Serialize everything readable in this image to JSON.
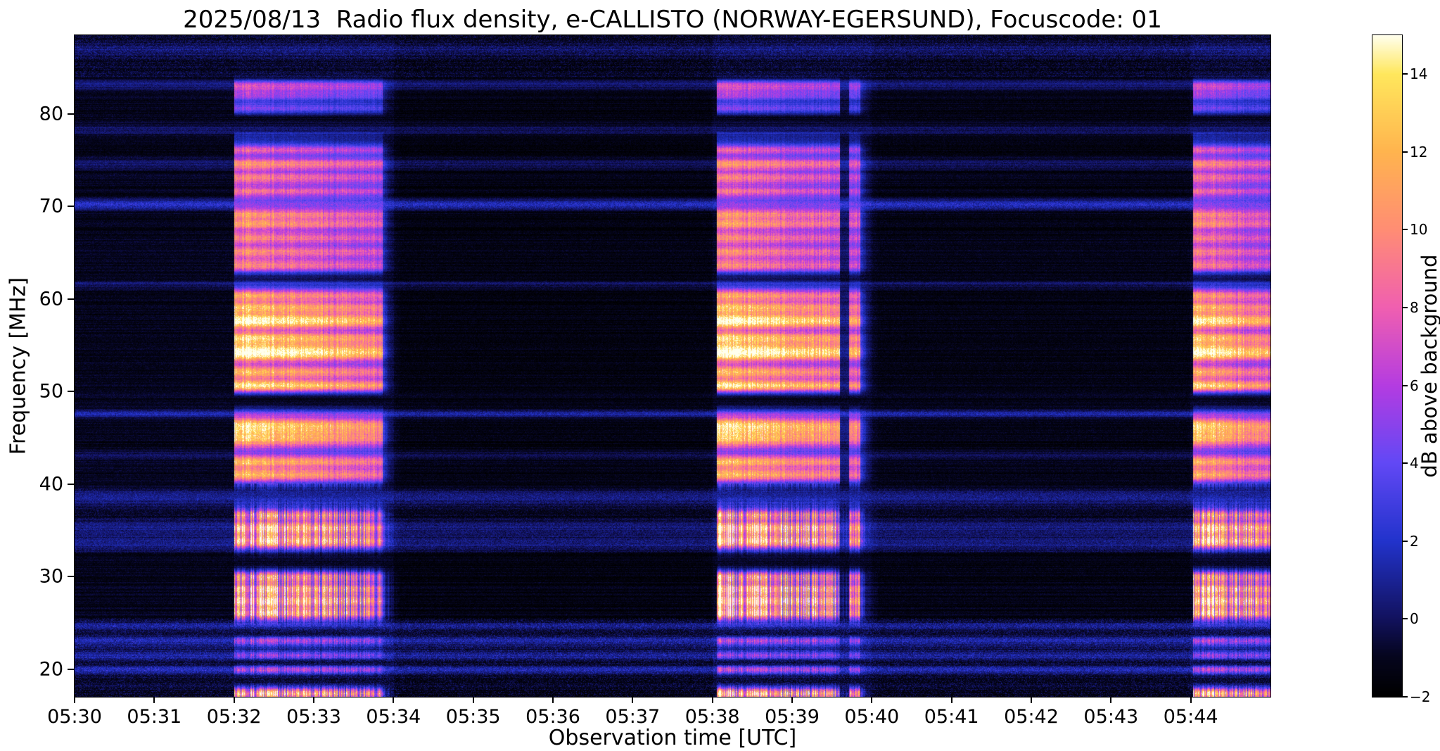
{
  "chart_data": {
    "type": "heatmap",
    "title": "2025/08/13  Radio flux density, e-CALLISTO (NORWAY-EGERSUND), Focuscode: 01",
    "xlabel": "Observation time [UTC]",
    "ylabel": "Frequency [MHz]",
    "colorbar_label": "dB above background",
    "x_tick_labels": [
      "05:30",
      "05:31",
      "05:32",
      "05:33",
      "05:34",
      "05:35",
      "05:36",
      "05:37",
      "05:38",
      "05:39",
      "05:40",
      "05:41",
      "05:42",
      "05:43",
      "05:44"
    ],
    "x_range_minutes": [
      0,
      15
    ],
    "y_ticks": [
      20,
      30,
      40,
      50,
      60,
      70,
      80
    ],
    "freq_range_mhz": [
      17.0,
      88.5
    ],
    "value_range_db": [
      -2,
      15
    ],
    "colorbar_ticks": [
      -2,
      0,
      2,
      4,
      6,
      8,
      10,
      12,
      14
    ],
    "legend_position": "right-colorbar",
    "grid": false,
    "colormap_stops": [
      [
        0.0,
        "#000000"
      ],
      [
        0.06,
        "#05051e"
      ],
      [
        0.118,
        "#12125f"
      ],
      [
        0.235,
        "#2233cc"
      ],
      [
        0.353,
        "#6248f5"
      ],
      [
        0.47,
        "#b43ce1"
      ],
      [
        0.588,
        "#f05fb0"
      ],
      [
        0.706,
        "#ff8d74"
      ],
      [
        0.824,
        "#ffb44e"
      ],
      [
        0.941,
        "#ffe75c"
      ],
      [
        1.0,
        "#ffffee"
      ]
    ],
    "background_level_db": -1.15,
    "noise_amplitude_db": 0.75,
    "row_jitter_db": 0.5,
    "segments_min": [
      [
        0,
        2,
        0.0
      ],
      [
        2,
        4,
        0.1
      ],
      [
        4,
        8,
        -0.3
      ],
      [
        8,
        10,
        0.1
      ],
      [
        10,
        14,
        -0.2
      ],
      [
        14,
        15.1,
        0.15
      ]
    ],
    "burst_intervals_min": [
      {
        "start": 2.0,
        "end": 3.86,
        "peak": 1.0
      },
      {
        "start": 8.06,
        "end": 9.86,
        "peak": 1.0,
        "gap": [
          9.6,
          9.72
        ]
      },
      {
        "start": 14.03,
        "end": 15.1,
        "peak": 0.95
      }
    ],
    "rfi_lines": [
      {
        "f": 19.9,
        "w": 0.3,
        "a": 2.6
      },
      {
        "f": 21.4,
        "w": 0.4,
        "a": 2.0
      },
      {
        "f": 23.0,
        "w": 0.4,
        "a": 2.2
      },
      {
        "f": 24.6,
        "w": 0.3,
        "a": 2.0
      },
      {
        "f": 33.6,
        "w": 0.6,
        "a": 1.7
      },
      {
        "f": 35.3,
        "w": 0.5,
        "a": 1.7
      },
      {
        "f": 38.4,
        "w": 0.7,
        "a": 1.8
      },
      {
        "f": 43.1,
        "w": 0.4,
        "a": 1.1
      },
      {
        "f": 47.6,
        "w": 0.3,
        "a": 2.7
      },
      {
        "f": 61.6,
        "w": 0.3,
        "a": 1.5
      },
      {
        "f": 70.2,
        "w": 0.4,
        "a": 3.4
      },
      {
        "f": 74.6,
        "w": 0.4,
        "a": 1.4
      },
      {
        "f": 78.3,
        "w": 0.4,
        "a": 1.5
      },
      {
        "f": 83.2,
        "w": 0.4,
        "a": 1.8
      },
      {
        "f": 86.9,
        "w": 0.5,
        "a": 1.4
      }
    ],
    "burst_bands": [
      {
        "f": 17.3,
        "w": 0.45,
        "a": 13.5
      },
      {
        "f": 19.9,
        "w": 0.35,
        "a": 4.5
      },
      {
        "f": 21.4,
        "w": 0.4,
        "a": 4.0
      },
      {
        "f": 23.0,
        "w": 0.4,
        "a": 4.5
      },
      {
        "f": 26.0,
        "w": 0.45,
        "a": 10.5
      },
      {
        "f": 27.3,
        "w": 0.5,
        "a": 12.0
      },
      {
        "f": 28.6,
        "w": 0.45,
        "a": 10.5
      },
      {
        "f": 29.9,
        "w": 0.45,
        "a": 9.5
      },
      {
        "f": 33.8,
        "w": 0.5,
        "a": 10.0
      },
      {
        "f": 35.2,
        "w": 0.5,
        "a": 10.0
      },
      {
        "f": 36.6,
        "w": 0.4,
        "a": 8.5
      },
      {
        "f": 41.0,
        "w": 0.55,
        "a": 11.0
      },
      {
        "f": 42.4,
        "w": 0.45,
        "a": 10.5
      },
      {
        "f": 44.9,
        "w": 0.8,
        "a": 11.5
      },
      {
        "f": 46.4,
        "w": 0.6,
        "a": 11.0
      },
      {
        "f": 50.6,
        "w": 0.5,
        "a": 14.0
      },
      {
        "f": 52.1,
        "w": 0.5,
        "a": 11.0
      },
      {
        "f": 54.2,
        "w": 0.7,
        "a": 16.5
      },
      {
        "f": 55.8,
        "w": 0.5,
        "a": 11.5
      },
      {
        "f": 57.6,
        "w": 0.6,
        "a": 15.5
      },
      {
        "f": 59.1,
        "w": 0.5,
        "a": 11.0
      },
      {
        "f": 60.4,
        "w": 0.45,
        "a": 10.0
      },
      {
        "f": 63.6,
        "w": 0.55,
        "a": 9.0
      },
      {
        "f": 65.1,
        "w": 0.5,
        "a": 8.5
      },
      {
        "f": 66.6,
        "w": 0.5,
        "a": 8.5
      },
      {
        "f": 68.1,
        "w": 0.5,
        "a": 9.5
      },
      {
        "f": 69.2,
        "w": 0.4,
        "a": 8.5
      },
      {
        "f": 71.6,
        "w": 0.5,
        "a": 7.5
      },
      {
        "f": 73.1,
        "w": 0.5,
        "a": 8.0
      },
      {
        "f": 74.6,
        "w": 0.5,
        "a": 8.0
      },
      {
        "f": 76.1,
        "w": 0.4,
        "a": 7.0
      },
      {
        "f": 80.6,
        "w": 0.5,
        "a": 6.0
      },
      {
        "f": 82.1,
        "w": 0.5,
        "a": 7.0
      },
      {
        "f": 83.1,
        "w": 0.4,
        "a": 6.0
      }
    ],
    "burst_broadband": {
      "fmin": 24.5,
      "fmax": 78.0,
      "amp": 2.6
    },
    "suppress_bands": [
      {
        "f": 49.2,
        "w": 0.7,
        "a": -3.5
      },
      {
        "f": 31.6,
        "w": 0.9,
        "a": -2.5
      },
      {
        "f": 38.8,
        "w": 0.6,
        "a": -2.5
      },
      {
        "f": 24.2,
        "w": 0.5,
        "a": -2.5
      },
      {
        "f": 62.5,
        "w": 0.6,
        "a": -2.2
      },
      {
        "f": 78.9,
        "w": 0.7,
        "a": -2.5
      },
      {
        "f": 20.8,
        "w": 0.3,
        "a": -2.0
      }
    ],
    "noisy_bands": [
      {
        "fmin": 17.0,
        "fmax": 25.5,
        "amp": 1.7
      },
      {
        "fmin": 32.5,
        "fmax": 39.5,
        "amp": 1.0
      },
      {
        "fmin": 84.0,
        "fmax": 88.5,
        "amp": 1.5
      }
    ]
  }
}
